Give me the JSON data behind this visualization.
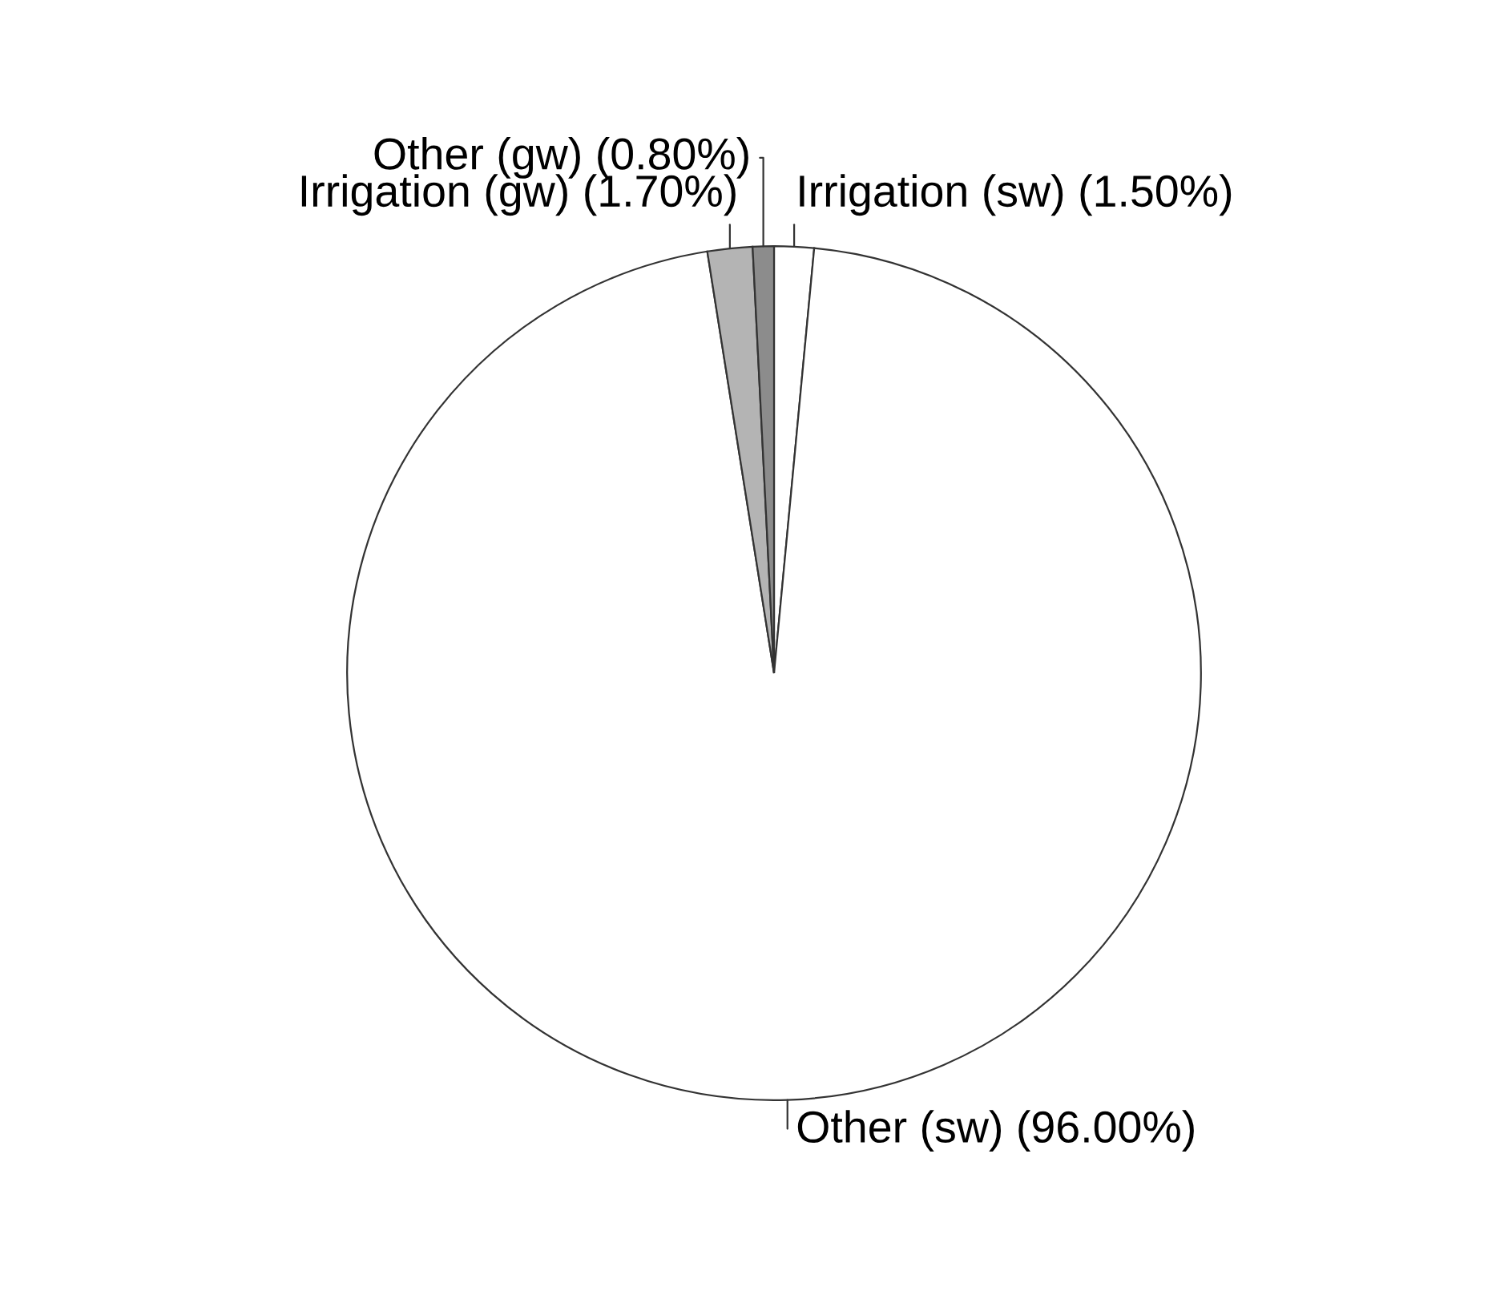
{
  "chart_data": {
    "type": "pie",
    "categories": [
      "Irrigation (sw)",
      "Other (sw)",
      "Irrigation (gw)",
      "Other (gw)"
    ],
    "values": [
      1.5,
      96.0,
      1.7,
      0.8
    ],
    "value_labels": [
      "(1.50%)",
      "(96.00%)",
      "(1.70%)",
      "(0.80%)"
    ],
    "colors": [
      "#ffffff",
      "#ffffff",
      "#b4b4b4",
      "#8c8c8c"
    ],
    "legend": false
  }
}
